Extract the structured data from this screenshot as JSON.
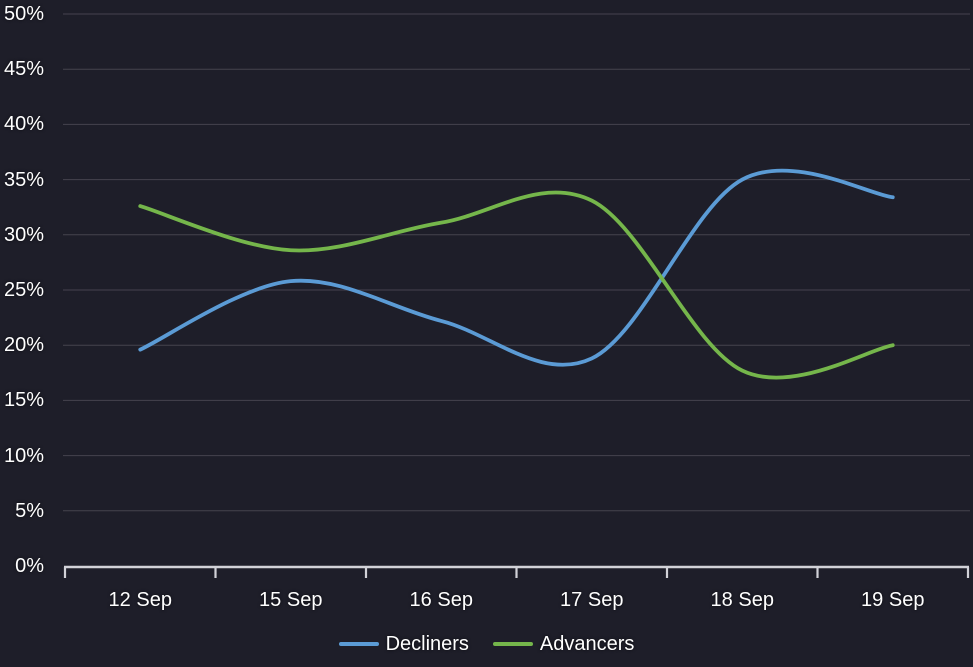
{
  "theme": {
    "background": "#1e1e29",
    "grid_color": "#45434e",
    "axis_color": "#d2d2d8",
    "text_color": "#ffffff"
  },
  "chart_data": {
    "type": "line",
    "title": "",
    "xlabel": "",
    "ylabel": "",
    "categories": [
      "12 Sep",
      "15 Sep",
      "16 Sep",
      "17 Sep",
      "18 Sep",
      "19 Sep"
    ],
    "series": [
      {
        "name": "Decliners",
        "color": "#5b9bd5",
        "values": [
          19.6,
          25.8,
          22.2,
          18.8,
          35.0,
          33.4
        ]
      },
      {
        "name": "Advancers",
        "color": "#75b64b",
        "values": [
          32.6,
          28.6,
          31.1,
          33.1,
          17.7,
          20.0
        ]
      }
    ],
    "ylim": [
      0,
      50
    ],
    "y_ticks": [
      0,
      5,
      10,
      15,
      20,
      25,
      30,
      35,
      40,
      45,
      50
    ],
    "y_tick_suffix": "%",
    "grid": "horizontal",
    "legend_position": "bottom",
    "curve": "smooth"
  },
  "legend": {
    "items": [
      {
        "label": "Decliners",
        "color": "#5b9bd5"
      },
      {
        "label": "Advancers",
        "color": "#75b64b"
      }
    ]
  }
}
